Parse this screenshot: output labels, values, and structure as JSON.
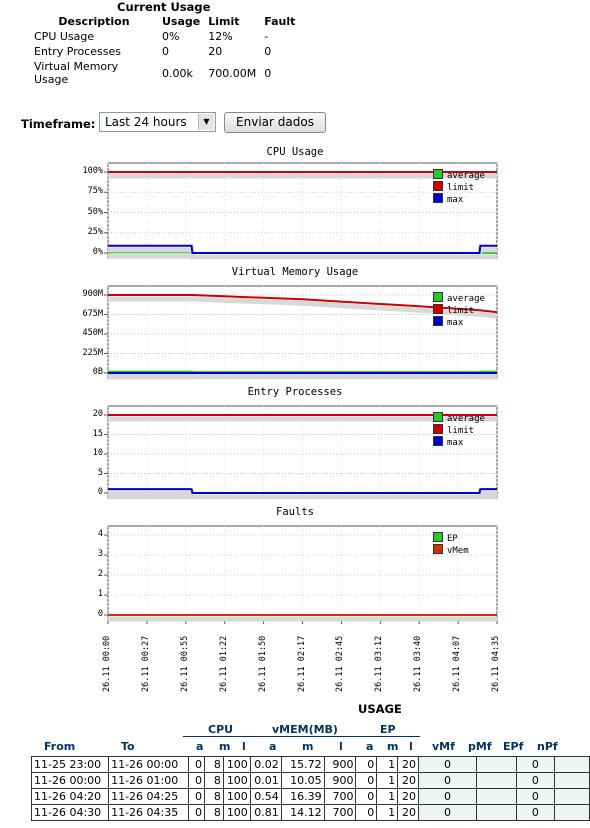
{
  "current_usage": {
    "title": "Current Usage",
    "headers": [
      "Description",
      "Usage",
      "Limit",
      "Fault"
    ],
    "rows": [
      [
        "CPU Usage",
        "0%",
        "12%",
        "-"
      ],
      [
        "Entry Processes",
        "0",
        "20",
        "0"
      ],
      [
        "Virtual Memory Usage",
        "0.00k",
        "700.00M",
        "0"
      ]
    ]
  },
  "timeframe": {
    "label": "Timeframe:",
    "selected": "Last 24 hours",
    "submit_label": "Enviar dados"
  },
  "x_labels": [
    "26.11 00:00",
    "26.11 00:27",
    "26.11 00:55",
    "26.11 01:22",
    "26.11 01:50",
    "26.11 02:17",
    "26.11 02:45",
    "26.11 03:12",
    "26.11 03:40",
    "26.11 04:07",
    "26.11 04:35"
  ],
  "chart_data": [
    {
      "type": "line",
      "title": "CPU Usage",
      "yticks": [
        "100%",
        "75%",
        "50%",
        "25%",
        "0%"
      ],
      "ylim": [
        0,
        100
      ],
      "grid": true,
      "legend_position": "top-right",
      "series": [
        {
          "name": "average",
          "color": "#22cc22",
          "x": [
            0,
            0.215,
            0.217,
            0.975,
            0.977,
            1
          ],
          "y": [
            1,
            1,
            0,
            0,
            0,
            0
          ]
        },
        {
          "name": "limit",
          "color": "#cc0000",
          "x": [
            0,
            1
          ],
          "y": [
            100,
            100
          ]
        },
        {
          "name": "max",
          "color": "#0000cc",
          "x": [
            0,
            0.215,
            0.217,
            0.955,
            0.957,
            1
          ],
          "y": [
            9,
            9,
            0,
            0,
            9,
            9
          ]
        }
      ]
    },
    {
      "type": "line",
      "title": "Virtual Memory Usage",
      "yticks": [
        "900M",
        "675M",
        "450M",
        "225M",
        "0B"
      ],
      "ylim": [
        0,
        900
      ],
      "grid": true,
      "legend_position": "top-right",
      "series": [
        {
          "name": "average",
          "color": "#22cc22",
          "x": [
            0,
            0.217,
            0.218,
            0.955,
            0.957,
            1
          ],
          "y": [
            16,
            16,
            10,
            10,
            16,
            16
          ]
        },
        {
          "name": "limit",
          "color": "#cc0000",
          "x": [
            0,
            0.217,
            0.5,
            0.8,
            0.955,
            1
          ],
          "y": [
            900,
            900,
            850,
            770,
            725,
            700
          ]
        },
        {
          "name": "max",
          "color": "#0000cc",
          "x": [
            0,
            1
          ],
          "y": [
            0,
            0
          ]
        }
      ]
    },
    {
      "type": "line",
      "title": "Entry Processes",
      "yticks": [
        "20",
        "15",
        "10",
        "5",
        "0"
      ],
      "ylim": [
        0,
        20
      ],
      "grid": true,
      "legend_position": "top-right",
      "series": [
        {
          "name": "average",
          "color": "#22cc22",
          "x": [
            0,
            1
          ],
          "y": [
            0,
            0
          ]
        },
        {
          "name": "limit",
          "color": "#cc0000",
          "x": [
            0,
            1
          ],
          "y": [
            20,
            20
          ]
        },
        {
          "name": "max",
          "color": "#0000cc",
          "x": [
            0,
            0.215,
            0.217,
            0.955,
            0.957,
            1
          ],
          "y": [
            1,
            1,
            0,
            0,
            1,
            1
          ]
        }
      ]
    },
    {
      "type": "line",
      "title": "Faults",
      "yticks": [
        "4",
        "3",
        "2",
        "1",
        "0"
      ],
      "ylim": [
        0,
        4
      ],
      "grid": true,
      "legend_position": "top-right",
      "series": [
        {
          "name": "EP",
          "color": "#22cc22",
          "x": [
            0,
            1
          ],
          "y": [
            0,
            0
          ]
        },
        {
          "name": "vMem",
          "color": "#cc3300",
          "x": [
            0,
            1
          ],
          "y": [
            0,
            0
          ]
        }
      ]
    }
  ],
  "usage": {
    "title": "USAGE",
    "group_headers": [
      "CPU",
      "vMEM(MB)",
      "EP"
    ],
    "sub_headers": [
      "From",
      "To",
      "a",
      "m",
      "l",
      "a",
      "m",
      "l",
      "a",
      "m",
      "l",
      "vMf",
      "pMf",
      "EPf",
      "nPf"
    ],
    "rows": [
      [
        "11-25 23:00",
        "11-26 00:00",
        "0",
        "8",
        "100",
        "0.02",
        "15.72",
        "900",
        "0",
        "1",
        "20",
        "0",
        "",
        "0",
        ""
      ],
      [
        "11-26 00:00",
        "11-26 01:00",
        "0",
        "8",
        "100",
        "0.01",
        "10.05",
        "900",
        "0",
        "1",
        "20",
        "0",
        "",
        "0",
        ""
      ],
      [
        "11-26 04:20",
        "11-26 04:25",
        "0",
        "8",
        "100",
        "0.54",
        "16.39",
        "700",
        "0",
        "1",
        "20",
        "0",
        "",
        "0",
        ""
      ],
      [
        "11-26 04:30",
        "11-26 04:35",
        "0",
        "8",
        "100",
        "0.81",
        "14.12",
        "700",
        "0",
        "1",
        "20",
        "0",
        "",
        "0",
        ""
      ]
    ]
  }
}
